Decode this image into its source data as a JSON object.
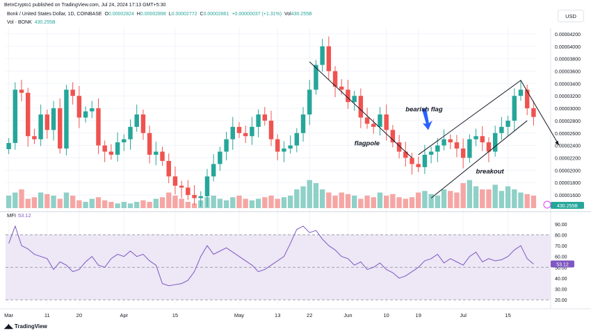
{
  "header": {
    "publisher": "BeInCrypto1 published on TradingView.com, Jul 24, 2024 17:13 GMT+5:30",
    "symbol": "Bonk / United States Dollar, 1D, COINBASE",
    "open_label": "O",
    "open": "0.00002824",
    "high_label": "H",
    "high": "0.00002898",
    "low_label": "L",
    "low": "0.00002772",
    "close_label": "C",
    "close": "0.00002861",
    "change": "+0.00000037 (+1.31%)",
    "vol_label": "Vol",
    "vol": "430.255B",
    "vol_row_label": "Vol · BONK",
    "vol_row_value": "430.255B"
  },
  "currency": "USD",
  "footer": {
    "brand": "TradingView"
  },
  "colors": {
    "up": "#26a69a",
    "down": "#ef5350",
    "vol_up": "#8fd0c7",
    "vol_down": "#f5a6a4",
    "mfi_line": "#7e57c2",
    "mfi_band": "#ede7f6",
    "grid": "#f0f3fa",
    "price_tag": "#26a69a",
    "mfi_tag": "#7e57c2"
  },
  "chart_data": [
    {
      "type": "candlestick",
      "title": "Bonk / United States Dollar, 1D, COINBASE",
      "ylim": [
        1.4e-06,
        4.5e-06
      ],
      "y_ticks": [
        "0.00004200",
        "0.00004000",
        "0.00003800",
        "0.00003600",
        "0.00003400",
        "0.00003200",
        "0.00003000",
        "0.00002800",
        "0.00002600",
        "0.00002400",
        "0.00002200",
        "0.00002000",
        "0.00001800",
        "0.00001600"
      ],
      "y_tick_values": [
        4.2e-06,
        4e-06,
        3.8e-06,
        3.6e-06,
        3.4e-06,
        3.2e-06,
        3e-06,
        2.8e-06,
        2.6e-06,
        2.4e-06,
        2.2e-06,
        2e-06,
        1.8e-06,
        1.6e-06
      ],
      "x_ticks": [
        "Mar",
        "11",
        "20",
        "Apr",
        "15",
        "May",
        "13",
        "22",
        "Jun",
        "10",
        "19",
        "Jul",
        "15"
      ],
      "x_tick_index": [
        0,
        6,
        11,
        18,
        26,
        36,
        42,
        47,
        53,
        59,
        64,
        71,
        78
      ],
      "closes": [
        2.44,
        3.3,
        3.25,
        2.55,
        2.5,
        2.9,
        2.65,
        3.0,
        2.35,
        3.3,
        3.2,
        2.85,
        2.95,
        3.0,
        2.4,
        2.3,
        2.25,
        2.45,
        2.5,
        2.7,
        2.9,
        2.6,
        2.25,
        2.3,
        2.15,
        1.9,
        1.75,
        1.72,
        1.6,
        1.55,
        1.58,
        1.9,
        2.1,
        2.3,
        2.5,
        2.7,
        2.6,
        2.55,
        2.7,
        2.9,
        2.8,
        2.5,
        2.3,
        2.35,
        2.4,
        2.6,
        2.9,
        3.3,
        3.7,
        4.0,
        3.6,
        3.35,
        3.3,
        3.1,
        3.2,
        2.85,
        2.75,
        2.7,
        2.9,
        2.65,
        2.45,
        2.3,
        2.2,
        2.1,
        2.05,
        2.25,
        2.3,
        2.4,
        2.5,
        2.45,
        2.35,
        2.2,
        2.5,
        2.55,
        2.45,
        2.3,
        2.6,
        2.7,
        2.8,
        3.2,
        3.3,
        3.0,
        2.86
      ],
      "current_price": "0.00002861",
      "countdown": "12:16:34",
      "volume_tag": "430.255B",
      "volumes": [
        0.4,
        0.5,
        0.6,
        0.3,
        0.35,
        0.5,
        0.45,
        0.4,
        0.3,
        0.5,
        0.4,
        0.25,
        0.2,
        0.3,
        0.35,
        0.25,
        0.2,
        0.15,
        0.2,
        0.15,
        0.2,
        0.25,
        0.2,
        0.3,
        0.35,
        0.5,
        0.4,
        0.3,
        0.2,
        0.15,
        0.25,
        0.35,
        0.4,
        0.3,
        0.25,
        0.35,
        0.4,
        0.3,
        0.25,
        0.3,
        0.35,
        0.4,
        0.3,
        0.35,
        0.4,
        0.6,
        0.7,
        0.9,
        0.8,
        0.6,
        0.5,
        0.4,
        0.5,
        0.45,
        0.4,
        0.3,
        0.4,
        0.35,
        0.5,
        0.4,
        0.45,
        0.35,
        0.3,
        0.35,
        0.5,
        0.55,
        0.45,
        0.4,
        0.6,
        0.55,
        0.5,
        0.8,
        0.9,
        0.7,
        0.6,
        0.6,
        0.75,
        0.55,
        0.7,
        0.6,
        0.5,
        0.45,
        0.4
      ],
      "annotations": [
        "flagpole",
        "bearish flag",
        "breakout"
      ]
    },
    {
      "type": "line",
      "title": "MFI",
      "series": [
        {
          "name": "MFI",
          "values": [
            72,
            88,
            70,
            67,
            62,
            60,
            58,
            48,
            55,
            52,
            46,
            48,
            55,
            60,
            52,
            50,
            58,
            62,
            60,
            65,
            60,
            62,
            56,
            52,
            35,
            33,
            34,
            35,
            38,
            46,
            60,
            70,
            62,
            65,
            68,
            64,
            60,
            56,
            52,
            46,
            48,
            52,
            56,
            60,
            72,
            85,
            88,
            82,
            84,
            76,
            70,
            66,
            60,
            58,
            52,
            55,
            48,
            50,
            54,
            48,
            45,
            40,
            42,
            46,
            50,
            56,
            58,
            62,
            54,
            58,
            55,
            52,
            60,
            64,
            55,
            58,
            56,
            57,
            60,
            66,
            70,
            58,
            53
          ]
        }
      ],
      "current_value": "53.12",
      "ylim": [
        15,
        95
      ],
      "y_ticks": [
        "90.00",
        "80.00",
        "70.00",
        "60.00",
        "50.00",
        "40.00",
        "30.00",
        "20.00"
      ],
      "y_tick_values": [
        90,
        80,
        70,
        60,
        50,
        40,
        30,
        20
      ],
      "band": [
        20,
        80
      ],
      "midline": 50
    }
  ]
}
